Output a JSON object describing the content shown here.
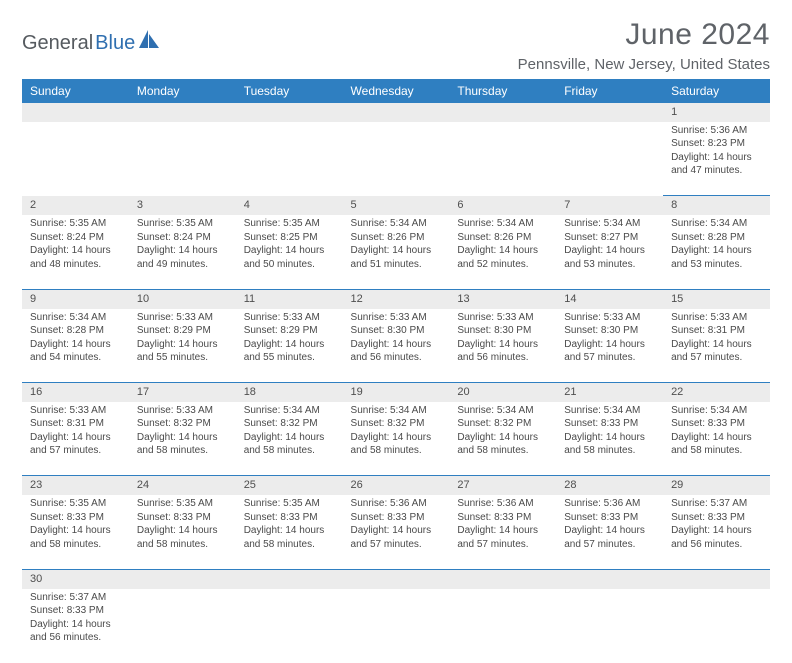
{
  "logo": {
    "part1": "General",
    "part2": "Blue"
  },
  "title": "June 2024",
  "location": "Pennsville, New Jersey, United States",
  "dayNames": [
    "Sunday",
    "Monday",
    "Tuesday",
    "Wednesday",
    "Thursday",
    "Friday",
    "Saturday"
  ],
  "colors": {
    "header_bg": "#2f7fc1",
    "header_text": "#ffffff",
    "daynum_bg": "#ececec",
    "text": "#4a4a4a",
    "title_text": "#5f6368",
    "rule": "#2f7fc1"
  },
  "weeks": [
    [
      null,
      null,
      null,
      null,
      null,
      null,
      {
        "n": "1",
        "sunrise": "5:36 AM",
        "sunset": "8:23 PM",
        "dl": "14 hours and 47 minutes."
      }
    ],
    [
      {
        "n": "2",
        "sunrise": "5:35 AM",
        "sunset": "8:24 PM",
        "dl": "14 hours and 48 minutes."
      },
      {
        "n": "3",
        "sunrise": "5:35 AM",
        "sunset": "8:24 PM",
        "dl": "14 hours and 49 minutes."
      },
      {
        "n": "4",
        "sunrise": "5:35 AM",
        "sunset": "8:25 PM",
        "dl": "14 hours and 50 minutes."
      },
      {
        "n": "5",
        "sunrise": "5:34 AM",
        "sunset": "8:26 PM",
        "dl": "14 hours and 51 minutes."
      },
      {
        "n": "6",
        "sunrise": "5:34 AM",
        "sunset": "8:26 PM",
        "dl": "14 hours and 52 minutes."
      },
      {
        "n": "7",
        "sunrise": "5:34 AM",
        "sunset": "8:27 PM",
        "dl": "14 hours and 53 minutes."
      },
      {
        "n": "8",
        "sunrise": "5:34 AM",
        "sunset": "8:28 PM",
        "dl": "14 hours and 53 minutes."
      }
    ],
    [
      {
        "n": "9",
        "sunrise": "5:34 AM",
        "sunset": "8:28 PM",
        "dl": "14 hours and 54 minutes."
      },
      {
        "n": "10",
        "sunrise": "5:33 AM",
        "sunset": "8:29 PM",
        "dl": "14 hours and 55 minutes."
      },
      {
        "n": "11",
        "sunrise": "5:33 AM",
        "sunset": "8:29 PM",
        "dl": "14 hours and 55 minutes."
      },
      {
        "n": "12",
        "sunrise": "5:33 AM",
        "sunset": "8:30 PM",
        "dl": "14 hours and 56 minutes."
      },
      {
        "n": "13",
        "sunrise": "5:33 AM",
        "sunset": "8:30 PM",
        "dl": "14 hours and 56 minutes."
      },
      {
        "n": "14",
        "sunrise": "5:33 AM",
        "sunset": "8:30 PM",
        "dl": "14 hours and 57 minutes."
      },
      {
        "n": "15",
        "sunrise": "5:33 AM",
        "sunset": "8:31 PM",
        "dl": "14 hours and 57 minutes."
      }
    ],
    [
      {
        "n": "16",
        "sunrise": "5:33 AM",
        "sunset": "8:31 PM",
        "dl": "14 hours and 57 minutes."
      },
      {
        "n": "17",
        "sunrise": "5:33 AM",
        "sunset": "8:32 PM",
        "dl": "14 hours and 58 minutes."
      },
      {
        "n": "18",
        "sunrise": "5:34 AM",
        "sunset": "8:32 PM",
        "dl": "14 hours and 58 minutes."
      },
      {
        "n": "19",
        "sunrise": "5:34 AM",
        "sunset": "8:32 PM",
        "dl": "14 hours and 58 minutes."
      },
      {
        "n": "20",
        "sunrise": "5:34 AM",
        "sunset": "8:32 PM",
        "dl": "14 hours and 58 minutes."
      },
      {
        "n": "21",
        "sunrise": "5:34 AM",
        "sunset": "8:33 PM",
        "dl": "14 hours and 58 minutes."
      },
      {
        "n": "22",
        "sunrise": "5:34 AM",
        "sunset": "8:33 PM",
        "dl": "14 hours and 58 minutes."
      }
    ],
    [
      {
        "n": "23",
        "sunrise": "5:35 AM",
        "sunset": "8:33 PM",
        "dl": "14 hours and 58 minutes."
      },
      {
        "n": "24",
        "sunrise": "5:35 AM",
        "sunset": "8:33 PM",
        "dl": "14 hours and 58 minutes."
      },
      {
        "n": "25",
        "sunrise": "5:35 AM",
        "sunset": "8:33 PM",
        "dl": "14 hours and 58 minutes."
      },
      {
        "n": "26",
        "sunrise": "5:36 AM",
        "sunset": "8:33 PM",
        "dl": "14 hours and 57 minutes."
      },
      {
        "n": "27",
        "sunrise": "5:36 AM",
        "sunset": "8:33 PM",
        "dl": "14 hours and 57 minutes."
      },
      {
        "n": "28",
        "sunrise": "5:36 AM",
        "sunset": "8:33 PM",
        "dl": "14 hours and 57 minutes."
      },
      {
        "n": "29",
        "sunrise": "5:37 AM",
        "sunset": "8:33 PM",
        "dl": "14 hours and 56 minutes."
      }
    ],
    [
      {
        "n": "30",
        "sunrise": "5:37 AM",
        "sunset": "8:33 PM",
        "dl": "14 hours and 56 minutes."
      },
      null,
      null,
      null,
      null,
      null,
      null
    ]
  ]
}
